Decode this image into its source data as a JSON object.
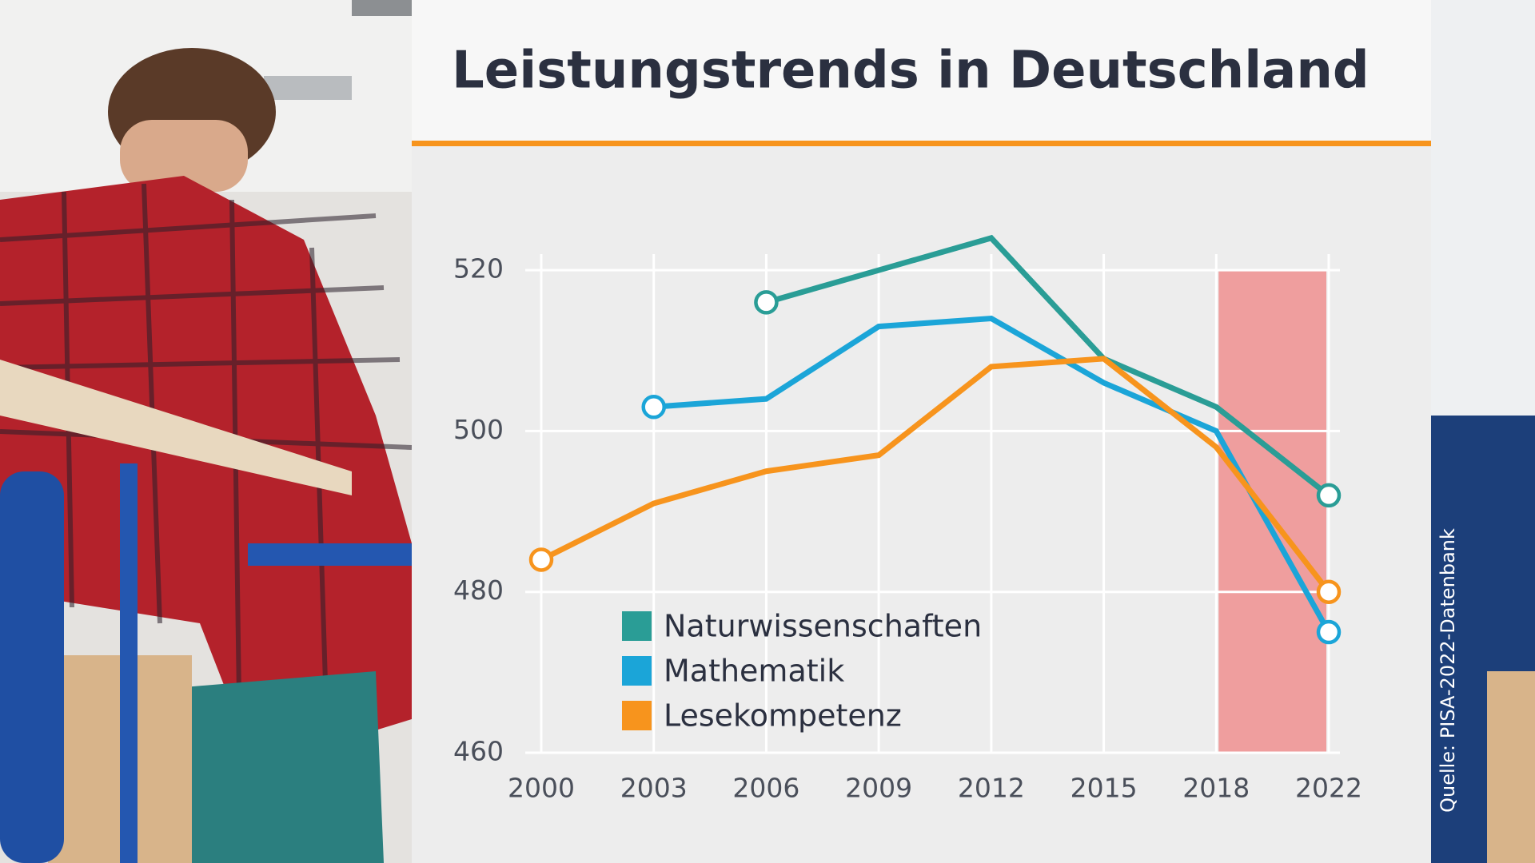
{
  "chart_data": {
    "type": "line",
    "title": "Leistungstrends in Deutschland",
    "source": "Quelle: PISA-2022-Datenbank",
    "categories": [
      "2000",
      "2003",
      "2006",
      "2009",
      "2012",
      "2015",
      "2018",
      "2022"
    ],
    "series": [
      {
        "name": "Naturwissenschaften",
        "color": "#2a9d96",
        "values": [
          null,
          null,
          516,
          520,
          524,
          509,
          503,
          492
        ]
      },
      {
        "name": "Mathematik",
        "color": "#1ba5d8",
        "values": [
          null,
          503,
          504,
          513,
          514,
          506,
          500,
          475
        ]
      },
      {
        "name": "Lesekompetenz",
        "color": "#f7941d",
        "values": [
          484,
          491,
          495,
          497,
          508,
          509,
          498,
          480
        ]
      }
    ],
    "ylim": [
      460,
      522
    ],
    "yticks": [
      460,
      480,
      500,
      520
    ],
    "grid": true
  }
}
